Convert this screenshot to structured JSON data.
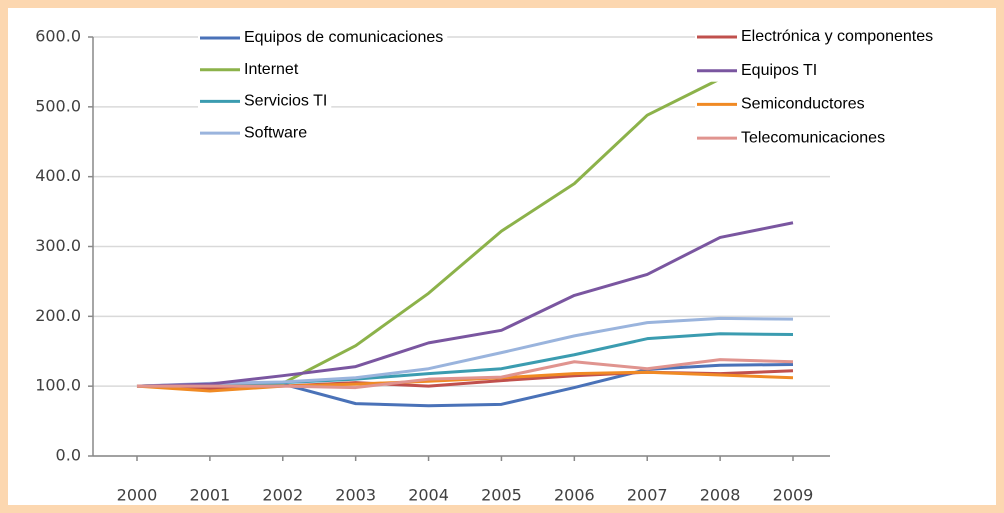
{
  "chart_data": {
    "type": "line",
    "categories": [
      "2000",
      "2001",
      "2002",
      "2003",
      "2004",
      "2005",
      "2006",
      "2007",
      "2008",
      "2009"
    ],
    "series": [
      {
        "name": "Equipos de comunicaciones",
        "color": "#4a72b8",
        "values": [
          100,
          103,
          103,
          75,
          72,
          74,
          98,
          124,
          130,
          131
        ]
      },
      {
        "name": "Internet",
        "color": "#8cb24a",
        "values": [
          100,
          103,
          104,
          158,
          233,
          322,
          390,
          488,
          540,
          552
        ]
      },
      {
        "name": "Servicios TI",
        "color": "#3b9cb0",
        "values": [
          100,
          102,
          105,
          110,
          118,
          125,
          145,
          168,
          175,
          174
        ]
      },
      {
        "name": "Software",
        "color": "#9ab4dd",
        "values": [
          100,
          104,
          106,
          112,
          125,
          148,
          172,
          191,
          197,
          196
        ]
      },
      {
        "name": "Electrónica y componentes",
        "color": "#c0504d",
        "values": [
          100,
          97,
          100,
          105,
          100,
          108,
          115,
          120,
          118,
          122
        ]
      },
      {
        "name": "Equipos TI",
        "color": "#7a56a0",
        "values": [
          100,
          103,
          115,
          128,
          162,
          180,
          230,
          260,
          313,
          334
        ]
      },
      {
        "name": "Semiconductores",
        "color": "#f08a24",
        "values": [
          100,
          93,
          100,
          103,
          107,
          112,
          118,
          120,
          116,
          112
        ]
      },
      {
        "name": "Telecomunicaciones",
        "color": "#e0948f",
        "values": [
          100,
          100,
          100,
          98,
          110,
          113,
          135,
          125,
          138,
          135
        ]
      }
    ],
    "ylim": [
      0,
      600
    ],
    "yticks": [
      {
        "value": 0,
        "label": "0.0"
      },
      {
        "value": 100,
        "label": "100.0"
      },
      {
        "value": 200,
        "label": "200.0"
      },
      {
        "value": 300,
        "label": "300.0"
      },
      {
        "value": 400,
        "label": "400.0"
      },
      {
        "value": 500,
        "label": "500.0"
      },
      {
        "value": 600,
        "label": "600.0"
      }
    ],
    "grid": true
  }
}
